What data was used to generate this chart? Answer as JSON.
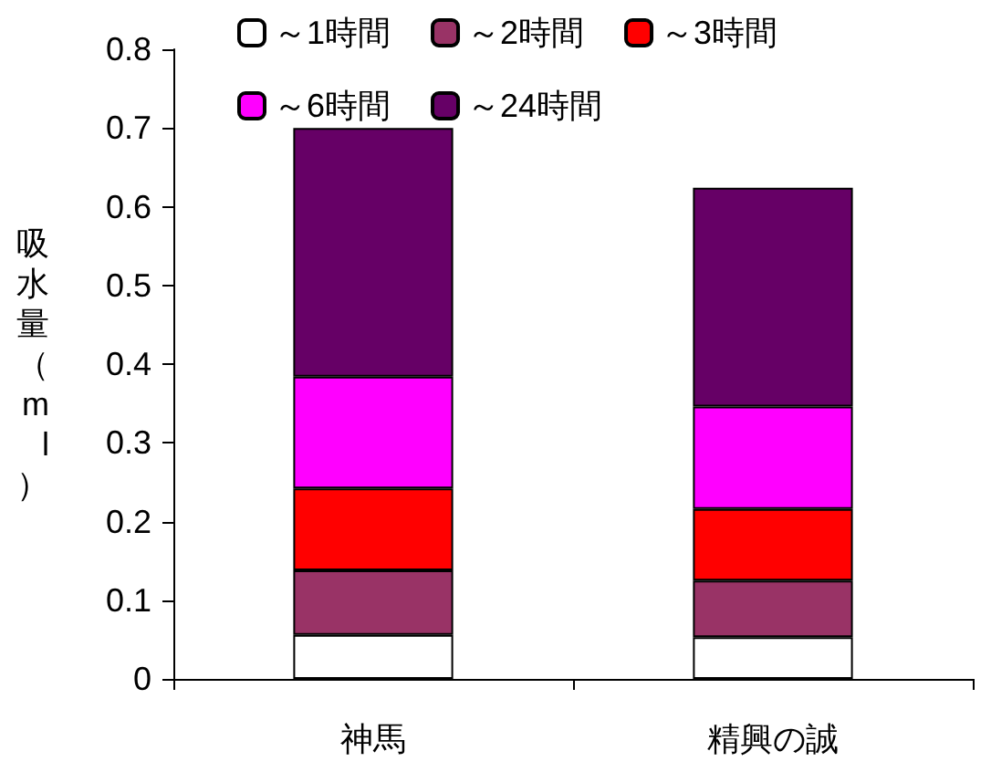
{
  "chart_data": {
    "type": "bar",
    "stacked": true,
    "ylabel": "吸水量（ml）",
    "categories": [
      "神馬",
      "精興の誠"
    ],
    "series": [
      {
        "name": "～1時間",
        "color": "#ffffff",
        "values": [
          0.056,
          0.053
        ]
      },
      {
        "name": "～2時間",
        "color": "#993366",
        "values": [
          0.082,
          0.072
        ]
      },
      {
        "name": "～3時間",
        "color": "#ff0000",
        "values": [
          0.104,
          0.091
        ]
      },
      {
        "name": "～6時間",
        "color": "#ff00ff",
        "values": [
          0.142,
          0.13
        ]
      },
      {
        "name": "～24時間",
        "color": "#660066",
        "values": [
          0.316,
          0.278
        ]
      }
    ],
    "ylim": [
      0,
      0.8
    ],
    "yticks": [
      0,
      0.1,
      0.2,
      0.3,
      0.4,
      0.5,
      0.6,
      0.7,
      0.8
    ],
    "grid": false,
    "legend": "top"
  }
}
